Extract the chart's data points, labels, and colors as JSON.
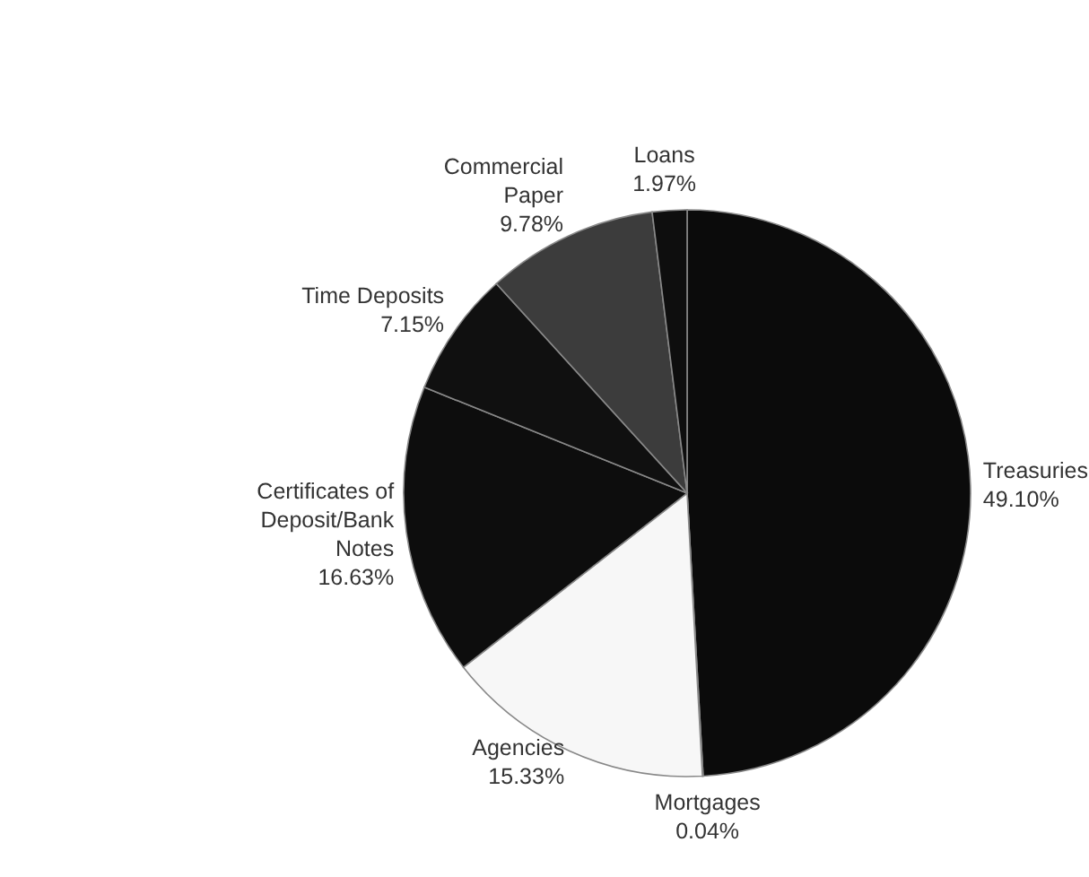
{
  "chart_data": {
    "type": "pie",
    "categories": [
      "Treasuries",
      "Mortgages",
      "Agencies",
      "Certificates of Deposit/Bank Notes",
      "Time Deposits",
      "Commercial Paper",
      "Loans"
    ],
    "values": [
      49.1,
      0.04,
      15.33,
      16.63,
      7.15,
      9.78,
      1.97
    ],
    "value_labels": [
      "49.10%",
      "0.04%",
      "15.33%",
      "16.63%",
      "7.15%",
      "9.78%",
      "1.97%"
    ],
    "colors": [
      "#0b0b0b",
      "#0b0b0b",
      "#f7f7f7",
      "#0d0d0d",
      "#101010",
      "#3c3c3c",
      "#0e0e0e"
    ],
    "legend": false
  }
}
